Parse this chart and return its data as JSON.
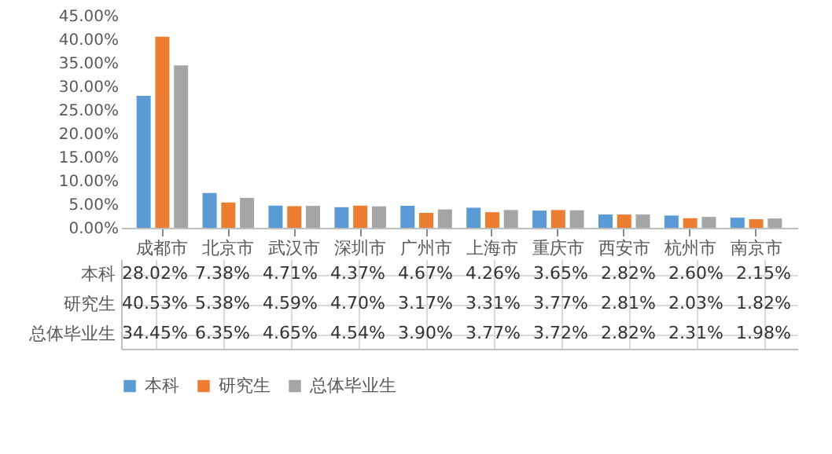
{
  "chart_data": {
    "type": "bar",
    "categories": [
      "成都市",
      "北京市",
      "武汉市",
      "深圳市",
      "广州市",
      "上海市",
      "重庆市",
      "西安市",
      "杭州市",
      "南京市"
    ],
    "series": [
      {
        "name": "本科",
        "color": "#5b9bd5",
        "values": [
          28.02,
          7.38,
          4.71,
          4.37,
          4.67,
          4.26,
          3.65,
          2.82,
          2.6,
          2.15
        ],
        "value_labels": [
          "28.02%",
          "7.38%",
          "4.71%",
          "4.37%",
          "4.67%",
          "4.26%",
          "3.65%",
          "2.82%",
          "2.60%",
          "2.15%"
        ]
      },
      {
        "name": "研究生",
        "color": "#ed7d31",
        "values": [
          40.53,
          5.38,
          4.59,
          4.7,
          3.17,
          3.31,
          3.77,
          2.81,
          2.03,
          1.82
        ],
        "value_labels": [
          "40.53%",
          "5.38%",
          "4.59%",
          "4.70%",
          "3.17%",
          "3.31%",
          "3.77%",
          "2.81%",
          "2.03%",
          "1.82%"
        ]
      },
      {
        "name": "总体毕业生",
        "color": "#a5a5a5",
        "values": [
          34.45,
          6.35,
          4.65,
          4.54,
          3.9,
          3.77,
          3.72,
          2.82,
          2.31,
          1.98
        ],
        "value_labels": [
          "34.45%",
          "6.35%",
          "4.65%",
          "4.54%",
          "3.90%",
          "3.77%",
          "3.72%",
          "2.82%",
          "2.31%",
          "1.98%"
        ]
      }
    ],
    "ylim": [
      0,
      45
    ],
    "yticks": [
      {
        "value": 0,
        "label": "0.00%"
      },
      {
        "value": 5,
        "label": "5.00%"
      },
      {
        "value": 10,
        "label": "10.00%"
      },
      {
        "value": 15,
        "label": "15.00%"
      },
      {
        "value": 20,
        "label": "20.00%"
      },
      {
        "value": 25,
        "label": "25.00%"
      },
      {
        "value": 30,
        "label": "30.00%"
      },
      {
        "value": 35,
        "label": "35.00%"
      },
      {
        "value": 40,
        "label": "40.00%"
      },
      {
        "value": 45,
        "label": "45.00%"
      }
    ],
    "grid": false,
    "legend": "bottom"
  }
}
